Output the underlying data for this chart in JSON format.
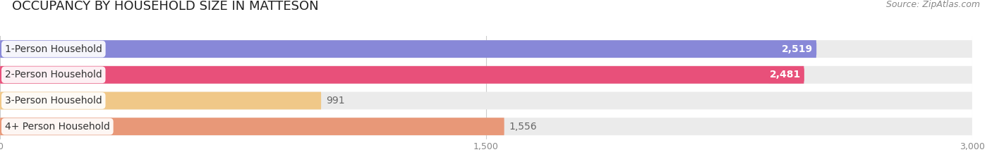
{
  "title": "OCCUPANCY BY HOUSEHOLD SIZE IN MATTESON",
  "source": "Source: ZipAtlas.com",
  "categories": [
    "1-Person Household",
    "2-Person Household",
    "3-Person Household",
    "4+ Person Household"
  ],
  "values": [
    2519,
    2481,
    991,
    1556
  ],
  "bar_colors": [
    "#8888d8",
    "#e8507a",
    "#f0c888",
    "#e89878"
  ],
  "label_colors": [
    "white",
    "white",
    "#666666",
    "#666666"
  ],
  "xlim": [
    0,
    3000
  ],
  "xticks": [
    0,
    1500,
    3000
  ],
  "title_fontsize": 13,
  "source_fontsize": 9,
  "bar_label_fontsize": 10,
  "cat_label_fontsize": 10,
  "background_color": "#ffffff",
  "bar_background_color": "#ebebeb"
}
